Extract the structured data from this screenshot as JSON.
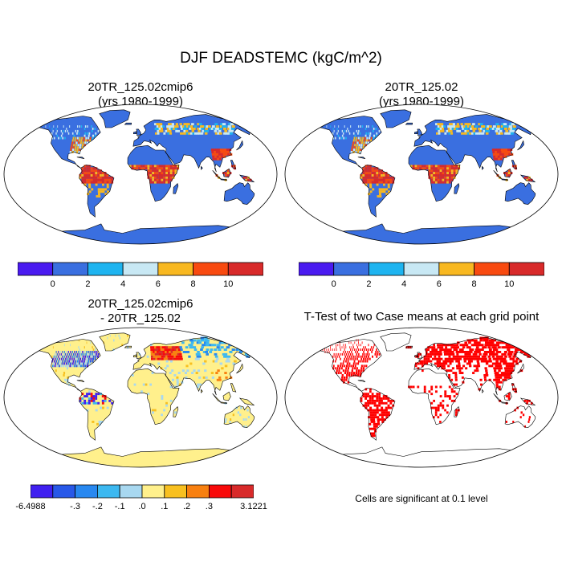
{
  "figure": {
    "title": "DJF DEADSTEMC (kgC/m^2)"
  },
  "panels": [
    {
      "id": "case1",
      "title_line1": "20TR_125.02cmip6",
      "title_line2": "(yrs 1980-1999)"
    },
    {
      "id": "case2",
      "title_line1": "20TR_125.02",
      "title_line2": "(yrs 1980-1999)"
    },
    {
      "id": "diff",
      "title_line1": "20TR_125.02cmip6",
      "title_line2": "- 20TR_125.02"
    },
    {
      "id": "ttest",
      "title_line1": "T-Test of two Case means at each grid point",
      "title_line2": ""
    }
  ],
  "colorbars": {
    "field": {
      "colors": [
        "#4a1af0",
        "#3a6fe0",
        "#1eb4f0",
        "#c8e8f4",
        "#f8b820",
        "#f84a10",
        "#d82a2a"
      ],
      "labels": [
        "0",
        "2",
        "4",
        "6",
        "8",
        "10"
      ]
    },
    "difference": {
      "colors": [
        "#4020f0",
        "#2858e8",
        "#2888f0",
        "#3cb8f0",
        "#a8d8f0",
        "#fff08c",
        "#f8c020",
        "#f88010",
        "#f80a0a",
        "#d82a2a"
      ],
      "labels": [
        "-6.4988",
        "-.3",
        "-.2",
        "-.1",
        ".0",
        ".1",
        ".2",
        ".3",
        "3.1221"
      ]
    }
  },
  "colors": {
    "ocean": "#ffffff",
    "land_base_field": "#3a6fe0",
    "land_base_diff": "#fff08c",
    "significant": "#ff0000",
    "coast": "#000000"
  },
  "significance_note": "Cells are significant at 0.1 level"
}
